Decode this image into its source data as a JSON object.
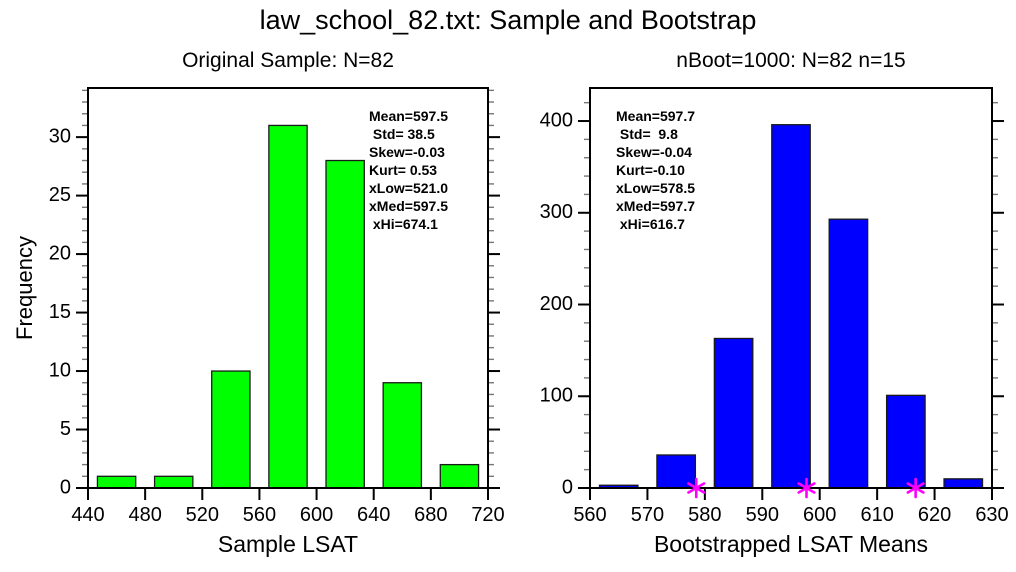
{
  "title": "law_school_82.txt: Sample and Bootstrap",
  "chart_data": [
    {
      "type": "bar",
      "title": "Original Sample: N=82",
      "xlabel": "Sample LSAT",
      "ylabel": "Frequency",
      "bin_edges": [
        440,
        480,
        520,
        560,
        600,
        640,
        680,
        720
      ],
      "values": [
        1,
        1,
        10,
        31,
        28,
        9,
        2
      ],
      "xlim": [
        440,
        720
      ],
      "ylim": [
        0,
        34.2
      ],
      "x_ticks": [
        440,
        480,
        520,
        560,
        600,
        640,
        680,
        720
      ],
      "y_major_ticks": [
        0,
        5,
        10,
        15,
        20,
        25,
        30
      ],
      "y_minor_step": 1,
      "bar_color": "#00ff00",
      "bar_border_color": "#1a1a1a",
      "grid": "off",
      "legend": "none",
      "stats_lines": [
        "Mean=597.5",
        " Std= 38.5",
        "Skew=-0.03",
        "Kurt= 0.53",
        "xLow=521.0",
        "xMed=597.5",
        " xHi=674.1"
      ]
    },
    {
      "type": "bar",
      "title": "nBoot=1000: N=82 n=15",
      "xlabel": "Bootstrapped LSAT Means",
      "ylabel": "",
      "bin_edges": [
        560,
        570,
        580,
        590,
        600,
        610,
        620,
        630
      ],
      "values": [
        3,
        36,
        163,
        396,
        293,
        101,
        10
      ],
      "xlim": [
        560,
        630
      ],
      "ylim": [
        0,
        436
      ],
      "x_ticks": [
        560,
        570,
        580,
        590,
        600,
        610,
        620,
        630
      ],
      "y_major_ticks": [
        0,
        100,
        200,
        300,
        400
      ],
      "y_minor_step": 20,
      "bar_color": "#0000ff",
      "bar_border_color": "#1a1a1a",
      "grid": "off",
      "legend": "none",
      "stats_lines": [
        "Mean=597.7",
        " Std=  9.8",
        "Skew=-0.04",
        "Kurt=-0.10",
        "xLow=578.5",
        "xMed=597.7",
        " xHi=616.7"
      ],
      "markers": {
        "symbol": "asterisk",
        "color": "#ff00ff",
        "points": [
          {
            "x": 578.5,
            "y": 0,
            "label": "xLow"
          },
          {
            "x": 597.7,
            "y": 0,
            "label": "xMed"
          },
          {
            "x": 616.7,
            "y": 0,
            "label": "xHi"
          }
        ]
      }
    }
  ]
}
